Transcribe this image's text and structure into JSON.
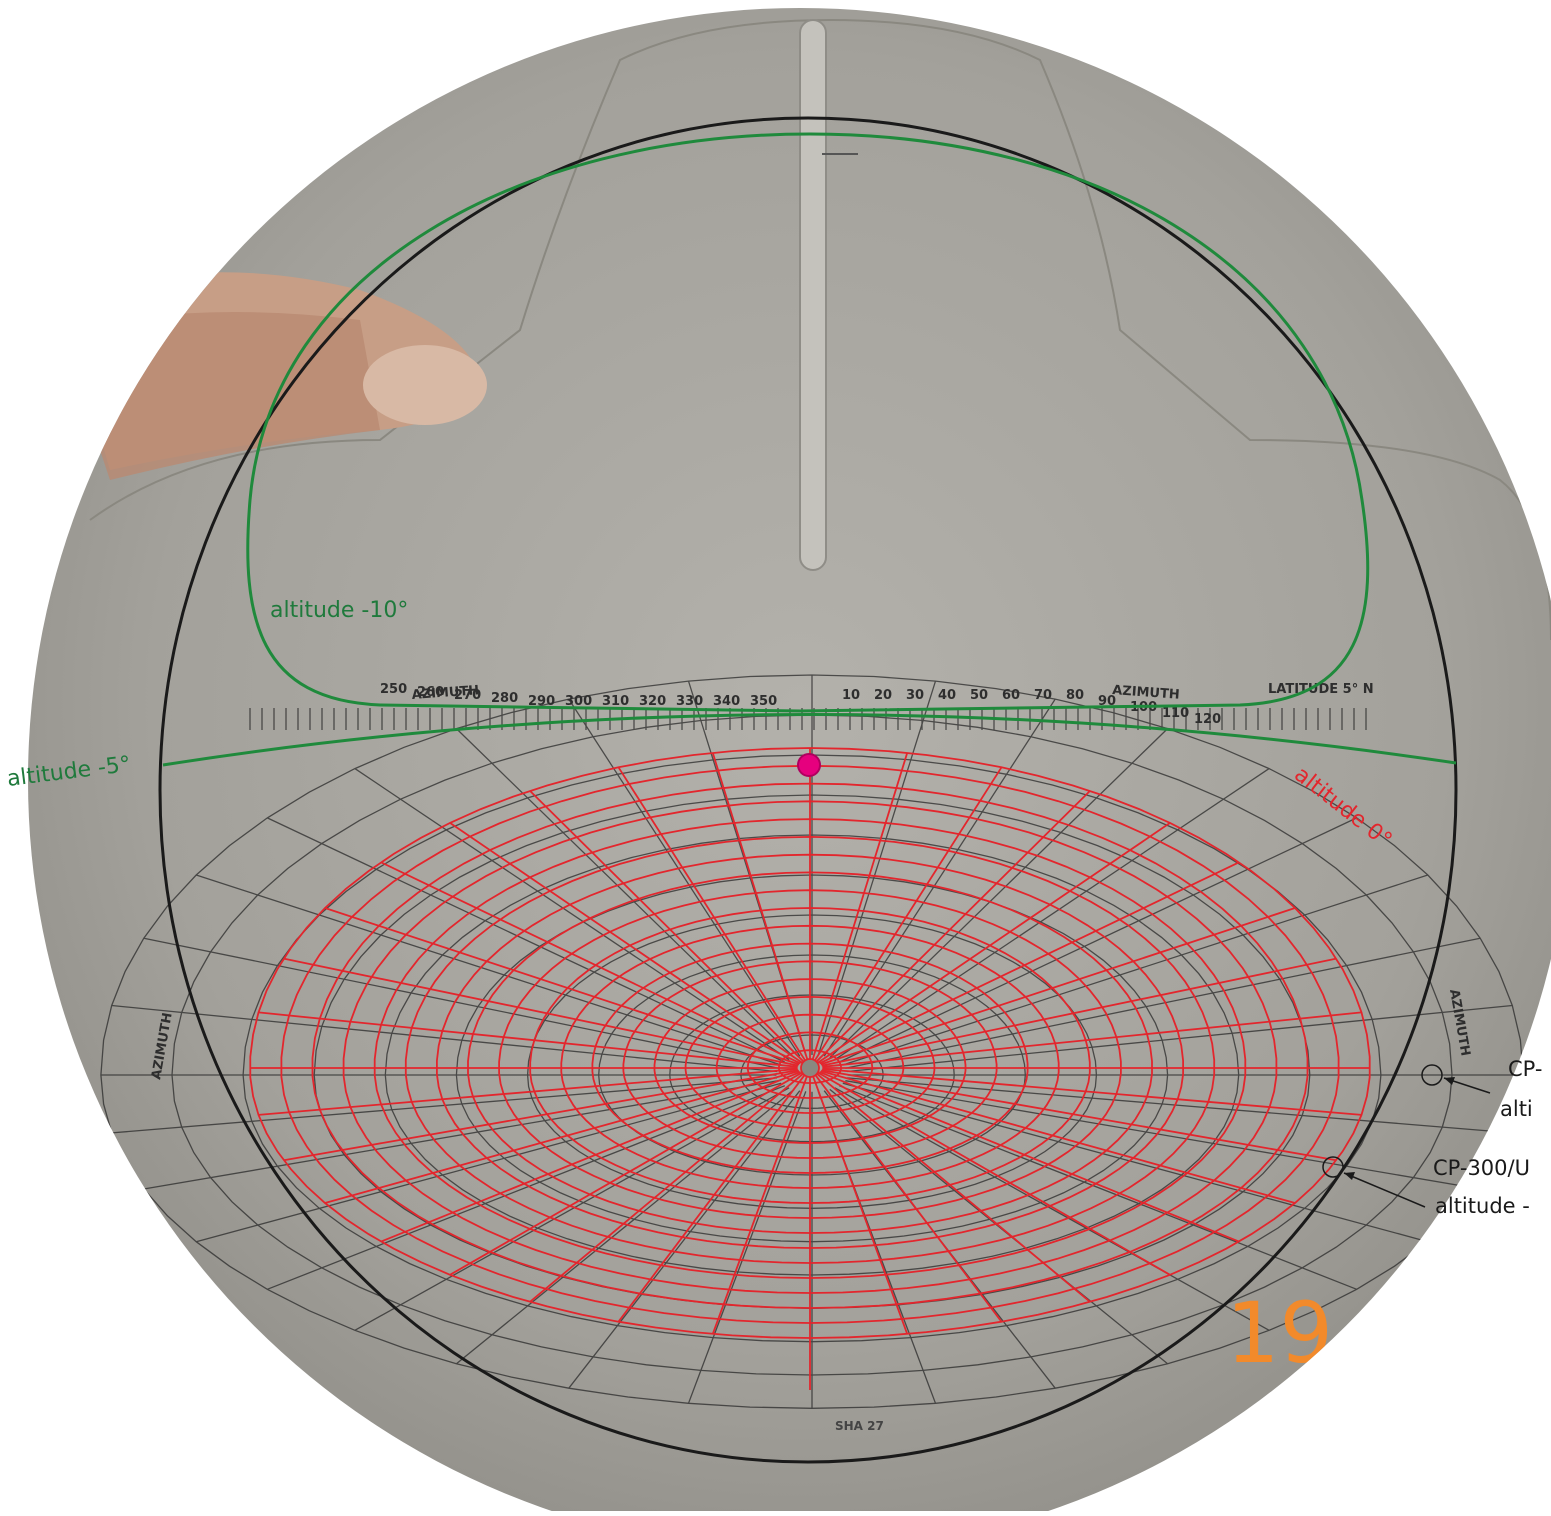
{
  "labels": {
    "altitude_minus_10": "altitude -10°",
    "altitude_minus_5": "altitude -5°",
    "altitude_0": "altitude 0°",
    "callout_upper_line1": "CP-",
    "callout_upper_line2": "alti",
    "callout_lower_line1": "CP-300/U",
    "callout_lower_line2": "altitude -"
  },
  "printed_scale": {
    "azimuth_left": "AZIMUTH",
    "azimuth_right": "AZIMUTH",
    "azimuth_side_left": "AZIMUTH",
    "azimuth_side_right": "AZIMUTH",
    "latitude": "LATITUDE 5° N",
    "sha_indicator": "SHA 27",
    "big_number": "19",
    "azimuth_ticks_left": [
      "250",
      "260",
      "270",
      "280",
      "290",
      "300",
      "310",
      "320",
      "330",
      "340",
      "350"
    ],
    "azimuth_ticks_right": [
      "10",
      "20",
      "30",
      "40",
      "50",
      "60",
      "70",
      "80",
      "90",
      "100",
      "110",
      "120"
    ]
  },
  "colors": {
    "altitude_curves": "#e3262d",
    "negative_altitude": "#1f7a3c",
    "outer_circle": "#1a1a1a",
    "marker": "#e6007e",
    "background_card": "#a7a59f",
    "template_outline": "#8a8880"
  }
}
